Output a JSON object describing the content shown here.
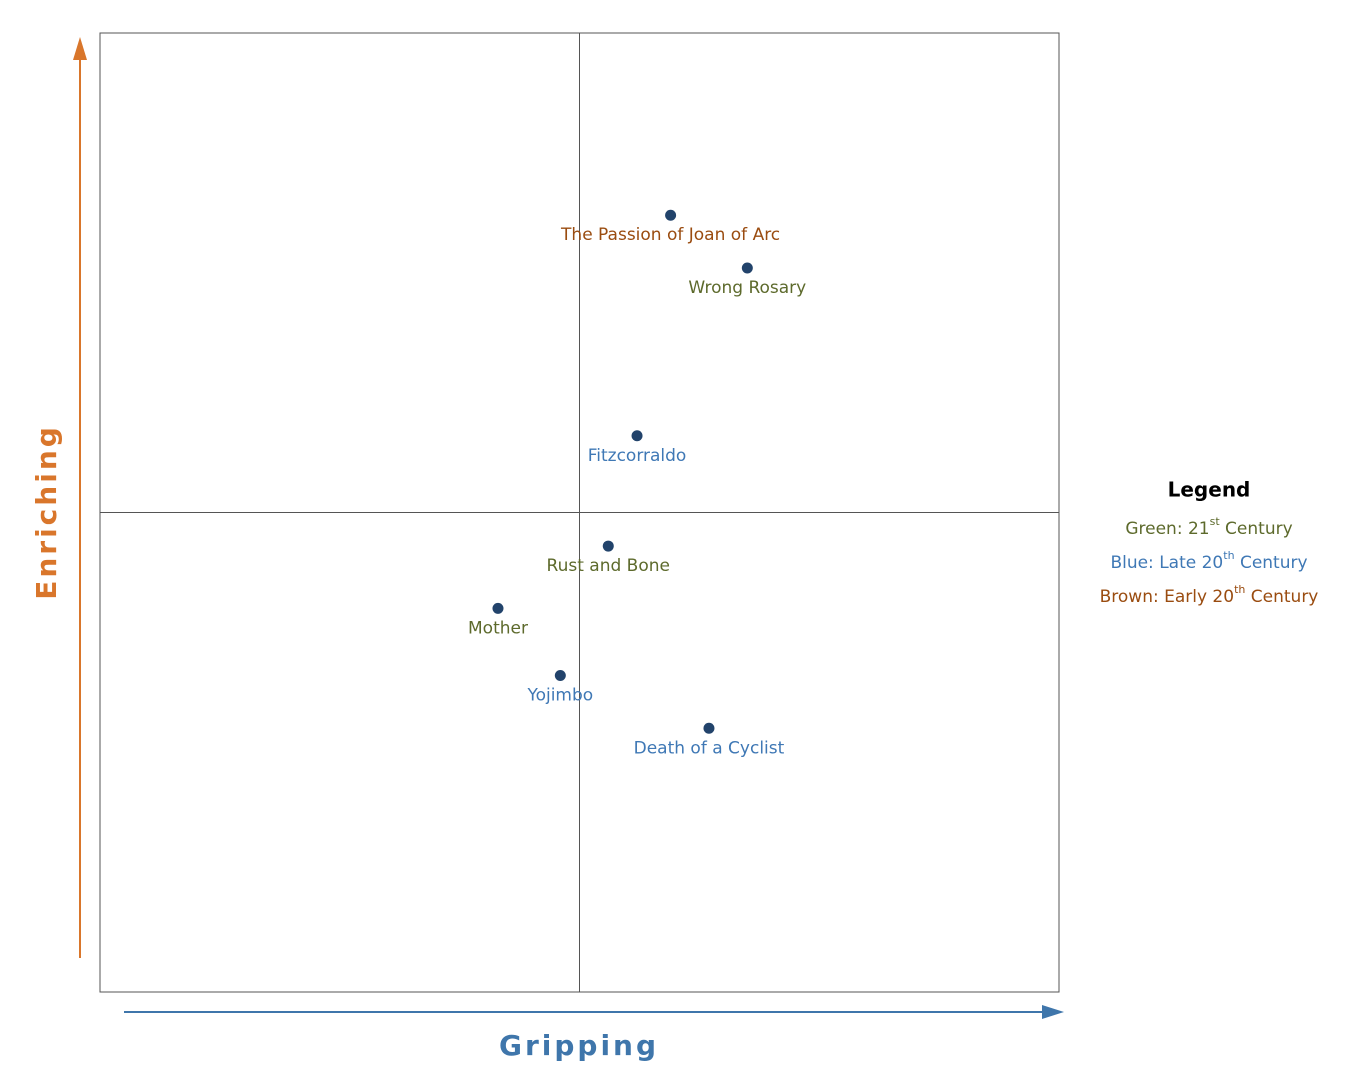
{
  "chart_data": {
    "type": "scatter",
    "x_label": "Gripping",
    "y_label": "Enriching",
    "x_label_color": "#3f76ab",
    "y_label_color": "#d9762b",
    "xlim": [
      -10,
      10
    ],
    "ylim": [
      -10,
      10
    ],
    "quadrant_x": 0,
    "quadrant_y": 0,
    "point_color": "#22436b",
    "points": [
      {
        "label": "The Passion of Joan of Arc",
        "x": 1.9,
        "y": 6.2,
        "color": "#9a4c10"
      },
      {
        "label": "Wrong Rosary",
        "x": 3.5,
        "y": 5.1,
        "color": "#5d6a2c"
      },
      {
        "label": "Fitzcorraldo",
        "x": 1.2,
        "y": 1.6,
        "color": "#3f78b5"
      },
      {
        "label": "Rust and Bone",
        "x": 0.6,
        "y": -0.7,
        "color": "#5d6a2c"
      },
      {
        "label": "Mother",
        "x": -1.7,
        "y": -2.0,
        "color": "#5d6a2c"
      },
      {
        "label": "Yojimbo",
        "x": -0.4,
        "y": -3.4,
        "color": "#3f78b5"
      },
      {
        "label": "Death of a Cyclist",
        "x": 2.7,
        "y": -4.5,
        "color": "#3f78b5"
      }
    ],
    "legend": {
      "title": "Legend",
      "items": [
        {
          "text": "Green: 21",
          "sup": "st",
          "rest": " Century",
          "color": "#5d6a2c"
        },
        {
          "text": "Blue: Late 20",
          "sup": "th",
          "rest": " Century",
          "color": "#3f78b5"
        },
        {
          "text": "Brown: Early 20",
          "sup": "th",
          "rest": " Century",
          "color": "#9a4c10"
        }
      ]
    }
  }
}
